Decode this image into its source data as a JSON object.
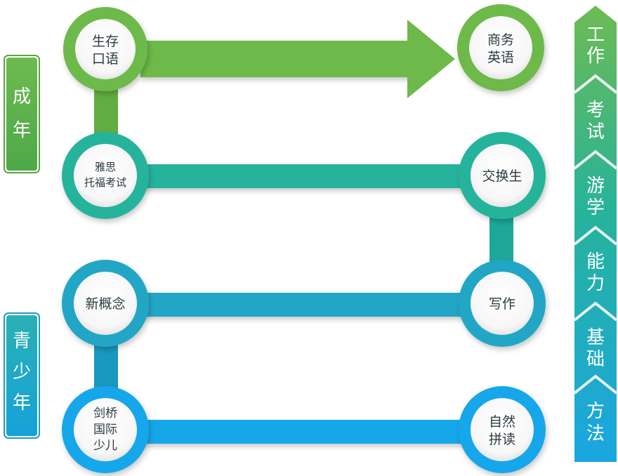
{
  "colors": {
    "green": "#6db94a",
    "green_dark": "#5aa43b",
    "teal": "#26b39c",
    "teal_dark": "#1c9e89",
    "cyan": "#22a6c6",
    "cyan_dark": "#1a8fb0",
    "blue": "#14a7ea",
    "blue_dark": "#0e8fd0"
  },
  "groups": {
    "adult": {
      "line1": "成",
      "line2": "年"
    },
    "youth": {
      "line1": "青",
      "line2": "少",
      "line3": "年"
    }
  },
  "nodes": {
    "survival_speaking": {
      "line1": "生存",
      "line2": "口语"
    },
    "business_english": {
      "line1": "商务",
      "line2": "英语"
    },
    "ielts_toefl": {
      "line1": "雅思",
      "line2": "托福考试"
    },
    "exchange_student": {
      "line1": "交换生"
    },
    "new_concept": {
      "line1": "新概念"
    },
    "writing": {
      "line1": "写作"
    },
    "cambridge": {
      "line1": "剑桥",
      "line2": "国际",
      "line3": "少儿"
    },
    "phonics": {
      "line1": "自然",
      "line2": "拼读"
    }
  },
  "stages": [
    {
      "line1": "工",
      "line2": "作"
    },
    {
      "line1": "考",
      "line2": "试"
    },
    {
      "line1": "游",
      "line2": "学"
    },
    {
      "line1": "能",
      "line2": "力"
    },
    {
      "line1": "基",
      "line2": "础"
    },
    {
      "line1": "方",
      "line2": "法"
    }
  ]
}
